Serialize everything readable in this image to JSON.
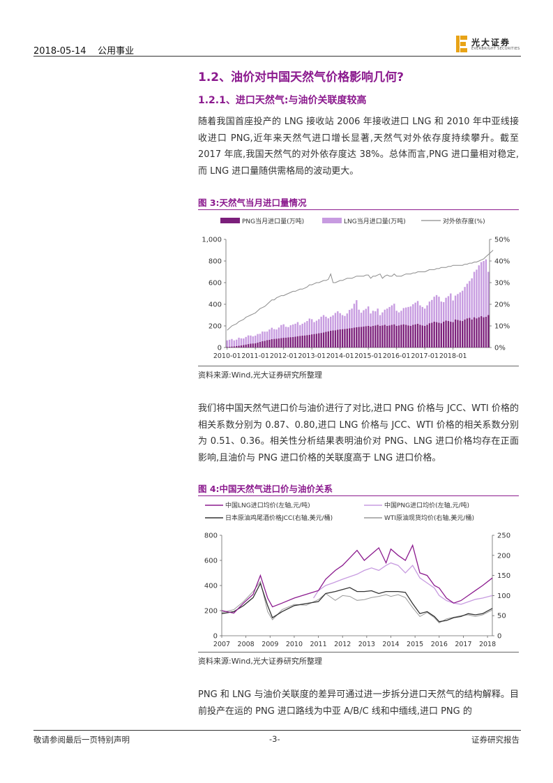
{
  "header": {
    "date_section": "2018-05-14    公用事业",
    "logo_cn": "光大证券",
    "logo_en": "EVERBRIGHT SECURITIES"
  },
  "section": {
    "h2": "1.2、油价对中国天然气价格影响几何?",
    "h3": "1.2.1、进口天然气:与油价关联度较高",
    "paragraphs": [
      "随着我国首座投产的 LNG 接收站 2006 年接收进口 LNG 和 2010 年中亚线接收进口 PNG,近年来天然气进口增长显著,天然气对外依存度持续攀升。截至 2017 年底,我国天然气的对外依存度达 38%。总体而言,PNG 进口量相对稳定,而 LNG 进口量随供需格局的波动更大。",
      "我们将中国天然气进口价与油价进行了对比,进口 PNG 价格与 JCC、WTI 价格的相关系数分别为 0.87、0.80,进口 LNG 价格与 JCC、WTI 价格的相关系数分别为 0.51、0.36。相关性分析结果表明油价对 PNG、LNG 进口价格均存在正面影响,且油价与 PNG 进口价格的关联度高于 LNG 进口价格。",
      "PNG 和 LNG 与油价关联度的差异可通过进一步拆分进口天然气的结构解释。目前投产在运的 PNG 进口路线为中亚 A/B/C 线和中缅线,进口 PNG 的"
    ]
  },
  "figure3": {
    "title": "图 3:天然气当月进口量情况",
    "source": "资料来源:Wind,光大证券研究所整理"
  },
  "figure4": {
    "title": "图 4:中国天然气进口价与油价关系",
    "source": "资料来源:Wind,光大证券研究所整理"
  },
  "footer": {
    "left": "敬请参阅最后一页特别声明",
    "center": "-3-",
    "right": "证券研究报告"
  },
  "colors": {
    "accent": "#8B1A8E",
    "png_bar": "#7B1F7B",
    "lng_bar": "#C79BE0",
    "dependency_line": "#8C8C8C",
    "lng_price": "#8B1A8E",
    "png_price": "#C79BE0",
    "jcc": "#333333",
    "wti": "#999999"
  },
  "chart_data": [
    {
      "type": "bar",
      "stacked": true,
      "legend": [
        "PNG当月进口量(万吨)",
        "LNG当月进口量(万吨)",
        "对外依存度(%)"
      ],
      "x_ticks": [
        "2010-01",
        "2011-01",
        "2012-01",
        "2013-01",
        "2014-01",
        "2015-01",
        "2016-01",
        "2017-01",
        "2018-01"
      ],
      "y_left_ticks": [
        "0",
        "200",
        "400",
        "600",
        "800",
        "1,000"
      ],
      "y_right_ticks": [
        "0%",
        "10%",
        "20%",
        "30%",
        "40%",
        "50%"
      ],
      "ylim_left": [
        0,
        1000
      ],
      "ylim_right": [
        0,
        50
      ],
      "series": [
        {
          "name": "PNG当月进口量(万吨)",
          "kind": "bar",
          "axis": "left",
          "values": [
            6,
            7,
            9,
            11,
            13,
            16,
            20,
            24,
            28,
            32,
            36,
            38,
            40,
            45,
            52,
            58,
            62,
            68,
            72,
            78,
            80,
            82,
            85,
            88,
            90,
            92,
            94,
            96,
            98,
            100,
            105,
            108,
            110,
            112,
            115,
            118,
            122,
            125,
            128,
            132,
            135,
            140,
            145,
            150,
            155,
            158,
            160,
            165,
            168,
            170,
            172,
            175,
            178,
            180,
            185,
            188,
            190,
            192,
            195,
            198,
            200,
            195,
            200,
            205,
            210,
            200,
            205,
            210,
            200,
            205,
            210,
            215,
            200,
            205,
            210,
            215,
            210,
            205,
            200,
            210,
            215,
            220,
            210,
            205,
            200,
            210,
            225,
            230,
            240,
            235,
            230,
            225,
            240,
            250,
            245,
            240,
            235,
            260,
            255,
            250,
            245,
            260,
            270,
            275,
            260,
            280,
            270,
            280,
            290,
            280,
            285,
            300
          ]
        },
        {
          "name": "LNG当月进口量(万吨)",
          "kind": "bar",
          "axis": "left",
          "values": [
            60,
            65,
            70,
            55,
            60,
            75,
            65,
            60,
            70,
            80,
            75,
            65,
            70,
            80,
            75,
            90,
            85,
            80,
            95,
            105,
            90,
            85,
            100,
            120,
            125,
            100,
            95,
            110,
            115,
            120,
            130,
            100,
            110,
            120,
            130,
            150,
            140,
            110,
            120,
            130,
            150,
            160,
            140,
            120,
            130,
            140,
            160,
            170,
            150,
            130,
            120,
            140,
            170,
            180,
            220,
            250,
            160,
            130,
            150,
            160,
            180,
            120,
            140,
            130,
            150,
            100,
            120,
            140,
            160,
            170,
            180,
            190,
            140,
            120,
            130,
            150,
            160,
            170,
            180,
            190,
            200,
            210,
            180,
            170,
            160,
            180,
            200,
            210,
            230,
            250,
            240,
            200,
            180,
            210,
            230,
            260,
            200,
            220,
            240,
            260,
            280,
            300,
            320,
            340,
            380,
            420,
            450,
            480,
            500,
            520,
            530,
            400
          ]
        },
        {
          "name": "对外依存度(%)",
          "kind": "line",
          "axis": "right",
          "values": [
            8,
            9,
            10,
            10.5,
            11,
            12,
            12.5,
            13,
            14,
            14.5,
            15,
            15.5,
            16,
            17,
            18,
            18.5,
            19,
            20,
            21,
            22,
            22,
            23,
            23.5,
            24,
            24,
            24.5,
            25,
            25.5,
            26,
            26,
            26.5,
            27,
            27,
            27.5,
            28,
            29,
            29,
            29.5,
            30,
            30,
            30.5,
            31,
            31,
            31.5,
            34,
            30,
            30,
            30.5,
            31,
            31,
            31.5,
            32,
            32,
            32,
            32.5,
            33,
            33,
            33,
            33,
            33.5,
            33.5,
            32,
            33,
            33,
            33.5,
            34,
            32,
            33,
            33.5,
            33,
            33,
            34,
            33,
            33,
            33,
            33.5,
            34,
            34,
            34,
            34.5,
            34.5,
            35,
            35,
            35,
            35,
            35.5,
            36,
            36,
            36,
            36.5,
            36.5,
            37,
            37,
            37,
            37.5,
            37.5,
            38,
            38,
            38,
            38,
            38,
            38.5,
            38.5,
            39,
            39,
            39.5,
            39.5,
            40,
            40.5,
            41,
            42,
            43,
            44,
            45
          ]
        }
      ]
    },
    {
      "type": "line",
      "legend": [
        "中国LNG进口均价(左轴,元/吨)",
        "中国PNG进口均价(左轴,元/吨)",
        "日本原油鸡尾酒价格JCC(右轴,美元/桶)",
        "WTI原油现货均价(右轴,美元/桶)"
      ],
      "x_ticks": [
        "2007",
        "2008",
        "2009",
        "2010",
        "2011",
        "2012",
        "2013",
        "2014",
        "2015",
        "2016",
        "2017",
        "2018"
      ],
      "y_left_ticks": [
        "0",
        "200",
        "400",
        "600",
        "800"
      ],
      "y_right_ticks": [
        "0",
        "50",
        "100",
        "150",
        "200",
        "250"
      ],
      "ylim_left": [
        0,
        800
      ],
      "ylim_right": [
        0,
        250
      ],
      "series": [
        {
          "name": "中国LNG进口均价(左轴,元/吨)",
          "axis": "left",
          "x": [
            2007,
            2007.5,
            2007.9,
            2008.3,
            2008.6,
            2008.9,
            2009.1,
            2009.5,
            2010,
            2010.5,
            2011,
            2011.3,
            2011.7,
            2012,
            2012.3,
            2012.6,
            2012.9,
            2013.2,
            2013.5,
            2013.8,
            2014,
            2014.3,
            2014.6,
            2014.9,
            2015.2,
            2015.5,
            2015.8,
            2016,
            2016.3,
            2016.6,
            2016.9,
            2017.2,
            2017.5,
            2017.8,
            2018.2
          ],
          "y": [
            200,
            180,
            260,
            330,
            480,
            300,
            230,
            260,
            300,
            330,
            360,
            450,
            520,
            560,
            620,
            680,
            600,
            650,
            700,
            580,
            690,
            640,
            600,
            720,
            500,
            480,
            400,
            380,
            300,
            260,
            280,
            320,
            360,
            400,
            460
          ]
        },
        {
          "name": "中国PNG进口均价(左轴,元/吨)",
          "axis": "left",
          "x": [
            2010.8,
            2011,
            2011.3,
            2011.6,
            2012,
            2012.3,
            2012.6,
            2012.9,
            2013.2,
            2013.5,
            2013.8,
            2014,
            2014.3,
            2014.6,
            2014.9,
            2015.2,
            2015.5,
            2015.8,
            2016,
            2016.3,
            2016.6,
            2016.9,
            2017.2,
            2017.5,
            2017.8,
            2018.2
          ],
          "y": [
            300,
            360,
            400,
            420,
            450,
            470,
            490,
            520,
            540,
            520,
            560,
            580,
            560,
            500,
            560,
            460,
            420,
            380,
            320,
            280,
            260,
            250,
            270,
            290,
            300,
            320
          ]
        },
        {
          "name": "日本原油鸡尾酒价格JCC(右轴,美元/桶)",
          "axis": "right",
          "x": [
            2007,
            2007.5,
            2007.9,
            2008.3,
            2008.6,
            2008.9,
            2009.1,
            2009.5,
            2010,
            2010.5,
            2011,
            2011.3,
            2011.7,
            2012,
            2012.3,
            2012.6,
            2012.9,
            2013.2,
            2013.5,
            2013.8,
            2014,
            2014.3,
            2014.6,
            2014.9,
            2015.2,
            2015.5,
            2015.8,
            2016,
            2016.3,
            2016.6,
            2016.9,
            2017.2,
            2017.5,
            2017.8,
            2018.2
          ],
          "y": [
            55,
            60,
            75,
            95,
            130,
            75,
            45,
            60,
            75,
            80,
            85,
            105,
            110,
            115,
            120,
            110,
            110,
            112,
            105,
            110,
            110,
            110,
            108,
            80,
            55,
            60,
            48,
            35,
            38,
            45,
            48,
            55,
            52,
            55,
            68
          ]
        },
        {
          "name": "WTI原油现货均价(右轴,美元/桶)",
          "axis": "right",
          "x": [
            2007,
            2007.5,
            2007.9,
            2008.3,
            2008.6,
            2008.9,
            2009.1,
            2009.5,
            2010,
            2010.5,
            2011,
            2011.3,
            2011.7,
            2012,
            2012.3,
            2012.6,
            2012.9,
            2013.2,
            2013.5,
            2013.8,
            2014,
            2014.3,
            2014.6,
            2014.9,
            2015.2,
            2015.5,
            2015.8,
            2016,
            2016.3,
            2016.6,
            2016.9,
            2017.2,
            2017.5,
            2017.8,
            2018.2
          ],
          "y": [
            58,
            65,
            85,
            110,
            135,
            60,
            40,
            65,
            78,
            76,
            90,
            105,
            88,
            100,
            98,
            88,
            90,
            95,
            98,
            102,
            98,
            102,
            95,
            70,
            48,
            58,
            45,
            32,
            42,
            46,
            50,
            52,
            48,
            52,
            64
          ]
        }
      ]
    }
  ]
}
